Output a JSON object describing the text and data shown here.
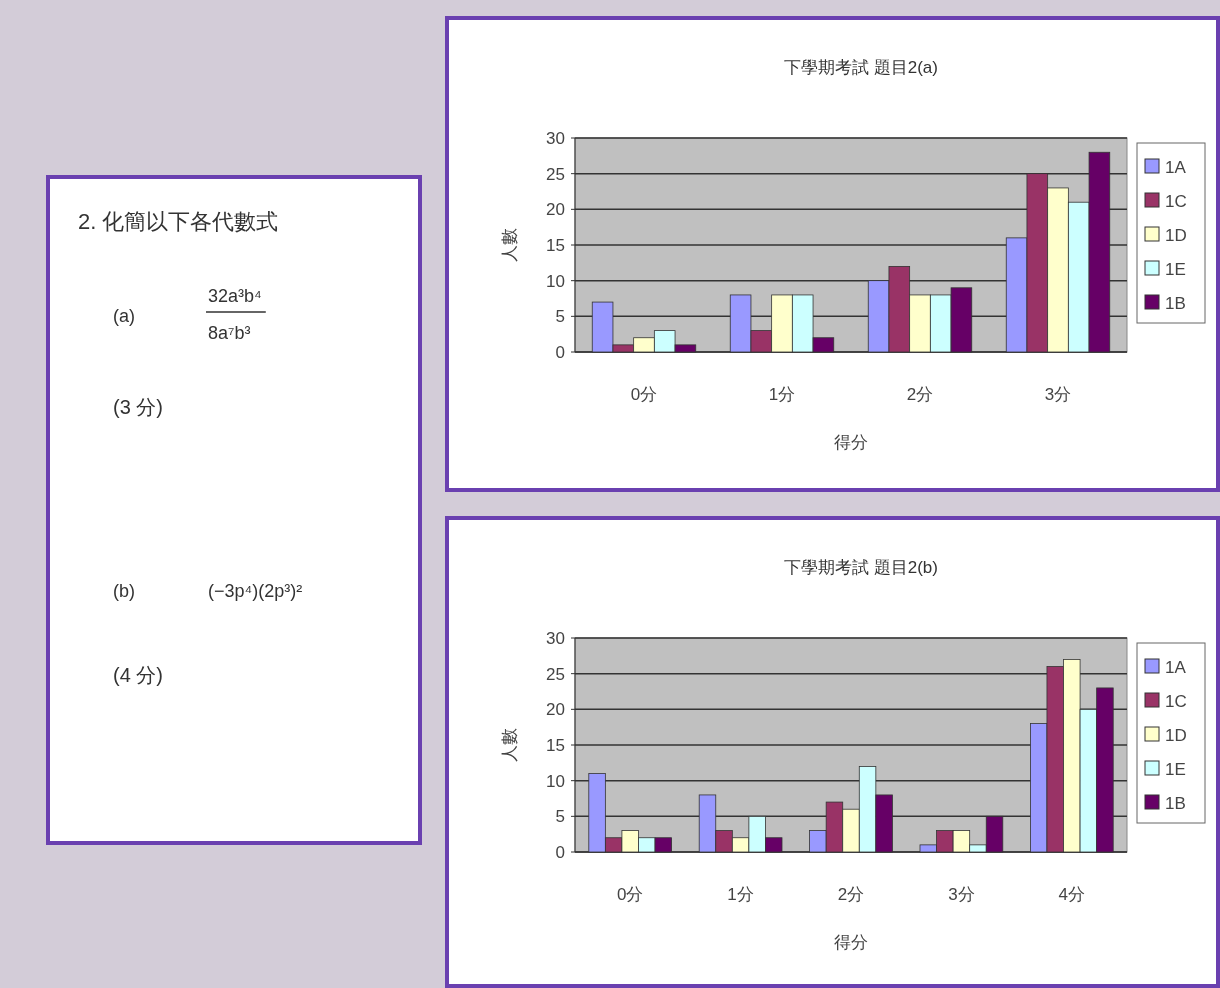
{
  "chart_data": [
    {
      "type": "other",
      "annotations": [
        "2. 化簡以下各代數式",
        "(a)",
        "32a³b⁴",
        "8a⁷b³",
        "(3 分)",
        "(b)",
        "(−3p⁴)(2p³)²",
        "(4 分)"
      ]
    },
    {
      "type": "bar",
      "title": "下學期考試 題目2(a)",
      "xlabel": "得分",
      "ylabel": "人數",
      "categories": [
        "0分",
        "1分",
        "2分",
        "3分"
      ],
      "ylim": [
        0,
        30
      ],
      "yticks": [
        0,
        5,
        10,
        15,
        20,
        25,
        30
      ],
      "grid": "y",
      "legend": "right",
      "series": [
        {
          "name": "1A",
          "color": "#9999ff",
          "values": [
            7,
            8,
            10,
            16
          ]
        },
        {
          "name": "1C",
          "color": "#993366",
          "values": [
            1,
            3,
            12,
            25
          ]
        },
        {
          "name": "1D",
          "color": "#ffffcc",
          "values": [
            2,
            8,
            8,
            23
          ]
        },
        {
          "name": "1E",
          "color": "#ccffff",
          "values": [
            3,
            8,
            8,
            21
          ]
        },
        {
          "name": "1B",
          "color": "#660066",
          "values": [
            1,
            2,
            9,
            28
          ]
        }
      ]
    },
    {
      "type": "bar",
      "title": "下學期考試 題目2(b)",
      "xlabel": "得分",
      "ylabel": "人數",
      "categories": [
        "0分",
        "1分",
        "2分",
        "3分",
        "4分"
      ],
      "ylim": [
        0,
        30
      ],
      "yticks": [
        0,
        5,
        10,
        15,
        20,
        25,
        30
      ],
      "grid": "y",
      "legend": "right",
      "series": [
        {
          "name": "1A",
          "color": "#9999ff",
          "values": [
            11,
            8,
            3,
            1,
            18
          ]
        },
        {
          "name": "1C",
          "color": "#993366",
          "values": [
            2,
            3,
            7,
            3,
            26
          ]
        },
        {
          "name": "1D",
          "color": "#ffffcc",
          "values": [
            3,
            2,
            6,
            3,
            27
          ]
        },
        {
          "name": "1E",
          "color": "#ccffff",
          "values": [
            2,
            5,
            12,
            1,
            20
          ]
        },
        {
          "name": "1B",
          "color": "#660066",
          "values": [
            2,
            2,
            8,
            5,
            23
          ]
        }
      ]
    }
  ]
}
